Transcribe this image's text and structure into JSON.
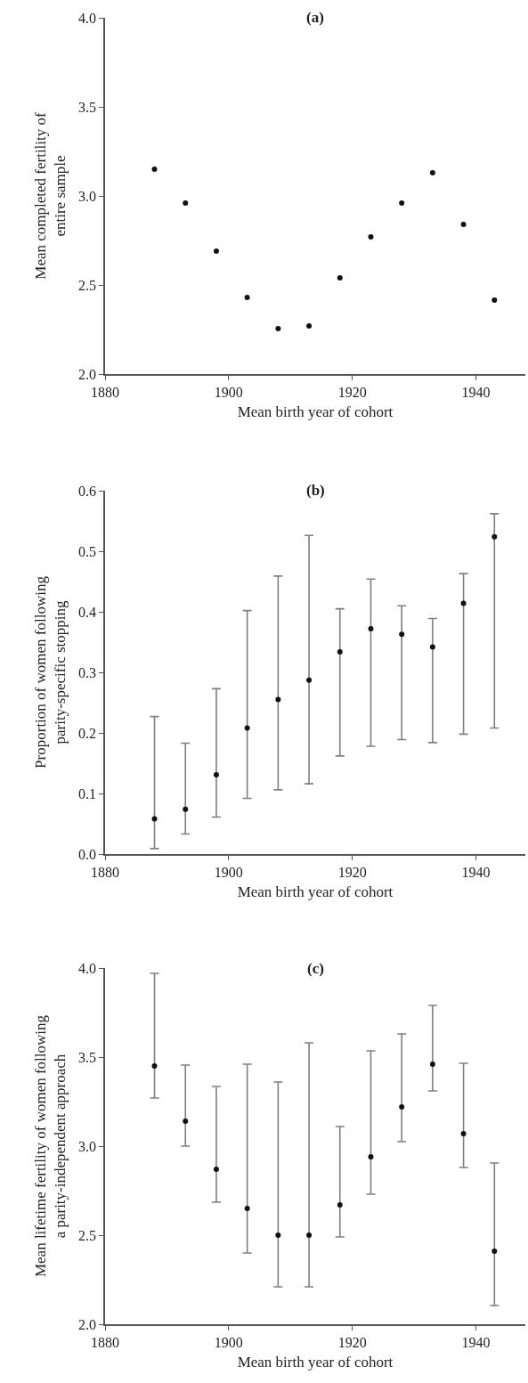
{
  "chart_data": [
    {
      "type": "scatter",
      "title": "(a)",
      "xlabel": "Mean birth year of cohort",
      "ylabel": "Mean completed fertility of\nentire sample",
      "x": [
        1888,
        1893,
        1898,
        1903,
        1908,
        1913,
        1918,
        1923,
        1928,
        1933,
        1938,
        1943
      ],
      "xlim": [
        1880,
        1948
      ],
      "xticks": [
        1880,
        1900,
        1920,
        1940
      ],
      "ylim": [
        2,
        4
      ],
      "yticks": [
        {
          "value": 2,
          "label": "2.0"
        },
        {
          "value": 2.5,
          "label": "2.5"
        },
        {
          "value": 3,
          "label": "3.0"
        },
        {
          "value": 3.5,
          "label": "3.5"
        },
        {
          "value": 4,
          "label": "4.0"
        }
      ],
      "marker": "circle",
      "series": [
        {
          "color": "#111111",
          "values": [
            3.15,
            2.96,
            2.69,
            2.43,
            2.255,
            2.27,
            2.54,
            2.77,
            2.96,
            3.13,
            2.84,
            2.415
          ]
        }
      ]
    },
    {
      "type": "scatter",
      "title": "(b)",
      "xlabel": "Mean birth year of cohort",
      "ylabel": "Proportion of women following\nparity-specific stopping",
      "x": [
        1888,
        1893,
        1898,
        1903,
        1908,
        1913,
        1918,
        1923,
        1928,
        1933,
        1938,
        1943
      ],
      "xlim": [
        1880,
        1948
      ],
      "xticks": [
        1880,
        1900,
        1920,
        1940
      ],
      "ylim": [
        0,
        0.6
      ],
      "yticks": [
        {
          "value": 0,
          "label": "0.0"
        },
        {
          "value": 0.1,
          "label": "0.1"
        },
        {
          "value": 0.2,
          "label": "0.2"
        },
        {
          "value": 0.3,
          "label": "0.3"
        },
        {
          "value": 0.4,
          "label": "0.4"
        },
        {
          "value": 0.5,
          "label": "0.5"
        },
        {
          "value": 0.6,
          "label": "0.6"
        }
      ],
      "marker": "circle",
      "series": [
        {
          "color": "#111111",
          "values": [
            0.058,
            0.074,
            0.131,
            0.208,
            0.255,
            0.287,
            0.334,
            0.372,
            0.363,
            0.342,
            0.414,
            0.524
          ],
          "errors": [
            [
              0.009,
              0.227
            ],
            [
              0.033,
              0.183
            ],
            [
              0.061,
              0.273
            ],
            [
              0.092,
              0.402
            ],
            [
              0.106,
              0.459
            ],
            [
              0.116,
              0.526
            ],
            [
              0.162,
              0.405
            ],
            [
              0.178,
              0.454
            ],
            [
              0.189,
              0.41
            ],
            [
              0.184,
              0.389
            ],
            [
              0.198,
              0.463
            ],
            [
              0.208,
              0.562
            ]
          ]
        }
      ]
    },
    {
      "type": "scatter",
      "title": "(c)",
      "xlabel": "Mean birth year of cohort",
      "ylabel": "Mean lifetime fertility of women following\na parity-independent approach",
      "x": [
        1888,
        1893,
        1898,
        1903,
        1908,
        1913,
        1918,
        1923,
        1928,
        1933,
        1938,
        1943
      ],
      "xlim": [
        1880,
        1948
      ],
      "xticks": [
        1880,
        1900,
        1920,
        1940
      ],
      "ylim": [
        2,
        4
      ],
      "yticks": [
        {
          "value": 2,
          "label": "2.0"
        },
        {
          "value": 2.5,
          "label": "2.5"
        },
        {
          "value": 3,
          "label": "3.0"
        },
        {
          "value": 3.5,
          "label": "3.5"
        },
        {
          "value": 4,
          "label": "4.0"
        }
      ],
      "marker": "circle",
      "series": [
        {
          "color": "#111111",
          "values": [
            3.45,
            3.14,
            2.87,
            2.65,
            2.5,
            2.5,
            2.67,
            2.94,
            3.22,
            3.46,
            3.07,
            2.41
          ],
          "errors": [
            [
              3.27,
              3.97
            ],
            [
              3.0,
              3.455
            ],
            [
              2.685,
              3.335
            ],
            [
              2.4,
              3.46
            ],
            [
              2.21,
              3.36
            ],
            [
              2.21,
              3.58
            ],
            [
              2.49,
              3.11
            ],
            [
              2.73,
              3.535
            ],
            [
              3.025,
              3.63
            ],
            [
              3.31,
              3.79
            ],
            [
              2.88,
              3.465
            ],
            [
              2.105,
              2.905
            ]
          ]
        }
      ]
    }
  ]
}
